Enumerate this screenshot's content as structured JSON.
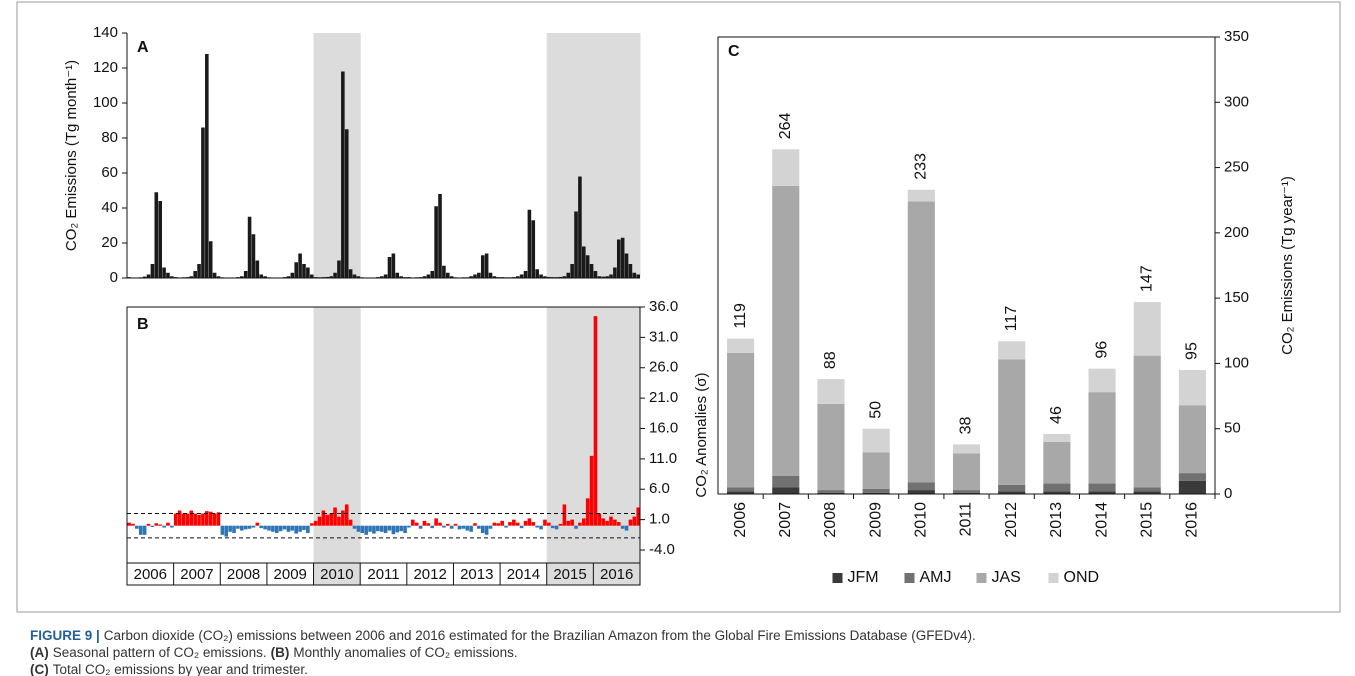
{
  "chart_data": [
    {
      "type": "bar",
      "panel_label": "A",
      "ylabel": "CO₂ Emissions (Tg month⁻¹)",
      "color": "#1a1a1a",
      "ylim": [
        0,
        140
      ],
      "yticks": [
        0,
        20,
        40,
        60,
        80,
        100,
        120,
        140
      ],
      "shaded": [
        false,
        false,
        false,
        false,
        true,
        false,
        false,
        false,
        false,
        true,
        true
      ],
      "values": [
        [
          0.5,
          0.3,
          0.3,
          0.4,
          0.8,
          2,
          8,
          49,
          44,
          6,
          3,
          1
        ],
        [
          0.5,
          0.3,
          0.4,
          0.5,
          1,
          4,
          8,
          86,
          128,
          21,
          3,
          1
        ],
        [
          0.4,
          0.3,
          0.3,
          0.3,
          0.5,
          1,
          4,
          35,
          25,
          10,
          2,
          1
        ],
        [
          0.4,
          0.3,
          0.3,
          0.3,
          0.5,
          1,
          3,
          9,
          14,
          8,
          6,
          2
        ],
        [
          0.5,
          0.4,
          0.5,
          0.6,
          1,
          3,
          10,
          118,
          85,
          5,
          2,
          1
        ],
        [
          0.4,
          0.3,
          0.3,
          0.3,
          0.5,
          1,
          2,
          12,
          14,
          3,
          1,
          0.5
        ],
        [
          0.5,
          0.3,
          0.4,
          0.5,
          1,
          2,
          4,
          41,
          48,
          7,
          3,
          1
        ],
        [
          0.4,
          0.3,
          0.4,
          0.4,
          1,
          2,
          3,
          13,
          14,
          3,
          1,
          0.5
        ],
        [
          0.5,
          0.4,
          0.4,
          0.5,
          1,
          2,
          4,
          39,
          33,
          5,
          2,
          1
        ],
        [
          0.6,
          0.5,
          0.5,
          0.6,
          1,
          3,
          8,
          38,
          58,
          18,
          13,
          8
        ],
        [
          4,
          1,
          0.8,
          1,
          2,
          6,
          22,
          23,
          14,
          8,
          3,
          2
        ]
      ]
    },
    {
      "type": "bar",
      "panel_label": "B",
      "ylabel": "CO₂ Anomalies (σ)",
      "colors": {
        "positive": "#ff0000",
        "negative": "#2e75b6"
      },
      "ylim": [
        -4,
        36
      ],
      "yticks": [
        {
          "value": -4,
          "label": "-4.0"
        },
        {
          "value": 1,
          "label": "1.0"
        },
        {
          "value": 6,
          "label": "6.0"
        },
        {
          "value": 11,
          "label": "11.0"
        },
        {
          "value": 16,
          "label": "16.0"
        },
        {
          "value": 21,
          "label": "21.0"
        },
        {
          "value": 26,
          "label": "26.0"
        },
        {
          "value": 31,
          "label": "31.0"
        },
        {
          "value": 36,
          "label": "36.0"
        }
      ],
      "thresholds": [
        -2,
        2
      ],
      "shaded": [
        false,
        false,
        false,
        false,
        true,
        false,
        false,
        false,
        false,
        true,
        true
      ],
      "categories": [
        "2006",
        "2007",
        "2008",
        "2009",
        "2010",
        "2011",
        "2012",
        "2013",
        "2014",
        "2015",
        "2016"
      ],
      "values": [
        [
          0.5,
          0.3,
          -0.5,
          -1.5,
          -1.5,
          0.3,
          -0.2,
          0.4,
          0.2,
          -0.3,
          0.5,
          -0.3
        ],
        [
          2,
          2.5,
          2,
          2,
          2.5,
          2,
          1.8,
          2,
          2.4,
          2.3,
          2,
          2.2
        ],
        [
          -1.5,
          -1.8,
          -1,
          -1.2,
          -0.5,
          -0.8,
          -0.6,
          -0.5,
          -0.3,
          0.5,
          -0.4,
          -0.6
        ],
        [
          -0.8,
          -1,
          -1.2,
          -0.9,
          -0.6,
          -1,
          -0.8,
          -1.3,
          -1,
          -0.7,
          -1.2,
          0.4
        ],
        [
          0.8,
          1.5,
          2.5,
          1.8,
          2,
          3,
          1.5,
          2.5,
          3.5,
          1,
          -0.5,
          -1
        ],
        [
          -1.2,
          -1.5,
          -1,
          -1.3,
          -0.9,
          -1,
          -1.2,
          -0.8,
          -1.4,
          -1.1,
          -0.9,
          -1.2
        ],
        [
          -0.3,
          1,
          0.5,
          -0.5,
          0.8,
          0.4,
          -0.4,
          1.2,
          0.5,
          -0.3,
          0.3,
          -0.5
        ],
        [
          0.3,
          -0.6,
          -0.5,
          -0.8,
          -1,
          0.4,
          -0.5,
          -1.2,
          -1.5,
          -0.5,
          0.5,
          0.4
        ],
        [
          0.8,
          -0.3,
          0.6,
          1,
          0.5,
          -0.4,
          0.8,
          1.2,
          0.6,
          -0.3,
          -0.6,
          1
        ],
        [
          0.5,
          -0.4,
          -0.6,
          0.3,
          3.5,
          0.8,
          1,
          -0.5,
          0.5,
          1.2,
          4.5,
          11.5
        ],
        [
          34.5,
          2,
          1.2,
          0.8,
          1.5,
          1,
          0.6,
          -0.5,
          -0.8,
          1,
          1.5,
          3
        ]
      ]
    },
    {
      "type": "stacked_bar",
      "panel_label": "C",
      "ylabel": "CO₂ Emissions (Tg year⁻¹)",
      "ylim": [
        0,
        350
      ],
      "yticks": [
        0,
        50,
        100,
        150,
        200,
        250,
        300,
        350
      ],
      "legend": "bottom",
      "categories": [
        "2006",
        "2007",
        "2008",
        "2009",
        "2010",
        "2011",
        "2012",
        "2013",
        "2014",
        "2015",
        "2016"
      ],
      "series": [
        {
          "name": "JFM",
          "color": "#3a3a3a",
          "values": [
            2,
            5,
            1,
            1,
            3,
            1,
            2,
            2,
            2,
            2,
            10
          ]
        },
        {
          "name": "AMJ",
          "color": "#717171",
          "values": [
            3,
            9,
            2,
            3,
            6,
            2,
            5,
            6,
            6,
            3,
            6
          ]
        },
        {
          "name": "JAS",
          "color": "#a8a8a8",
          "values": [
            103,
            222,
            66,
            28,
            215,
            28,
            96,
            32,
            70,
            101,
            52
          ]
        },
        {
          "name": "OND",
          "color": "#d3d3d3",
          "values": [
            11,
            28,
            19,
            18,
            9,
            7,
            14,
            6,
            18,
            41,
            27
          ]
        }
      ],
      "totals": [
        119,
        264,
        88,
        50,
        233,
        38,
        117,
        46,
        96,
        147,
        95
      ]
    }
  ],
  "caption": {
    "label": "FIGURE 9 |",
    "text": "Carbon dioxide (CO₂) emissions between 2006 and 2016 estimated for the Brazilian Amazon from the Global Fire Emissions Database (GFEDv4).",
    "parts": [
      {
        "label": "(A)",
        "text": "Seasonal pattern of CO₂ emissions."
      },
      {
        "label": "(B)",
        "text": "Monthly anomalies of CO₂ emissions."
      },
      {
        "label": "(C)",
        "text": "Total CO₂ emissions by year and trimester."
      }
    ]
  }
}
